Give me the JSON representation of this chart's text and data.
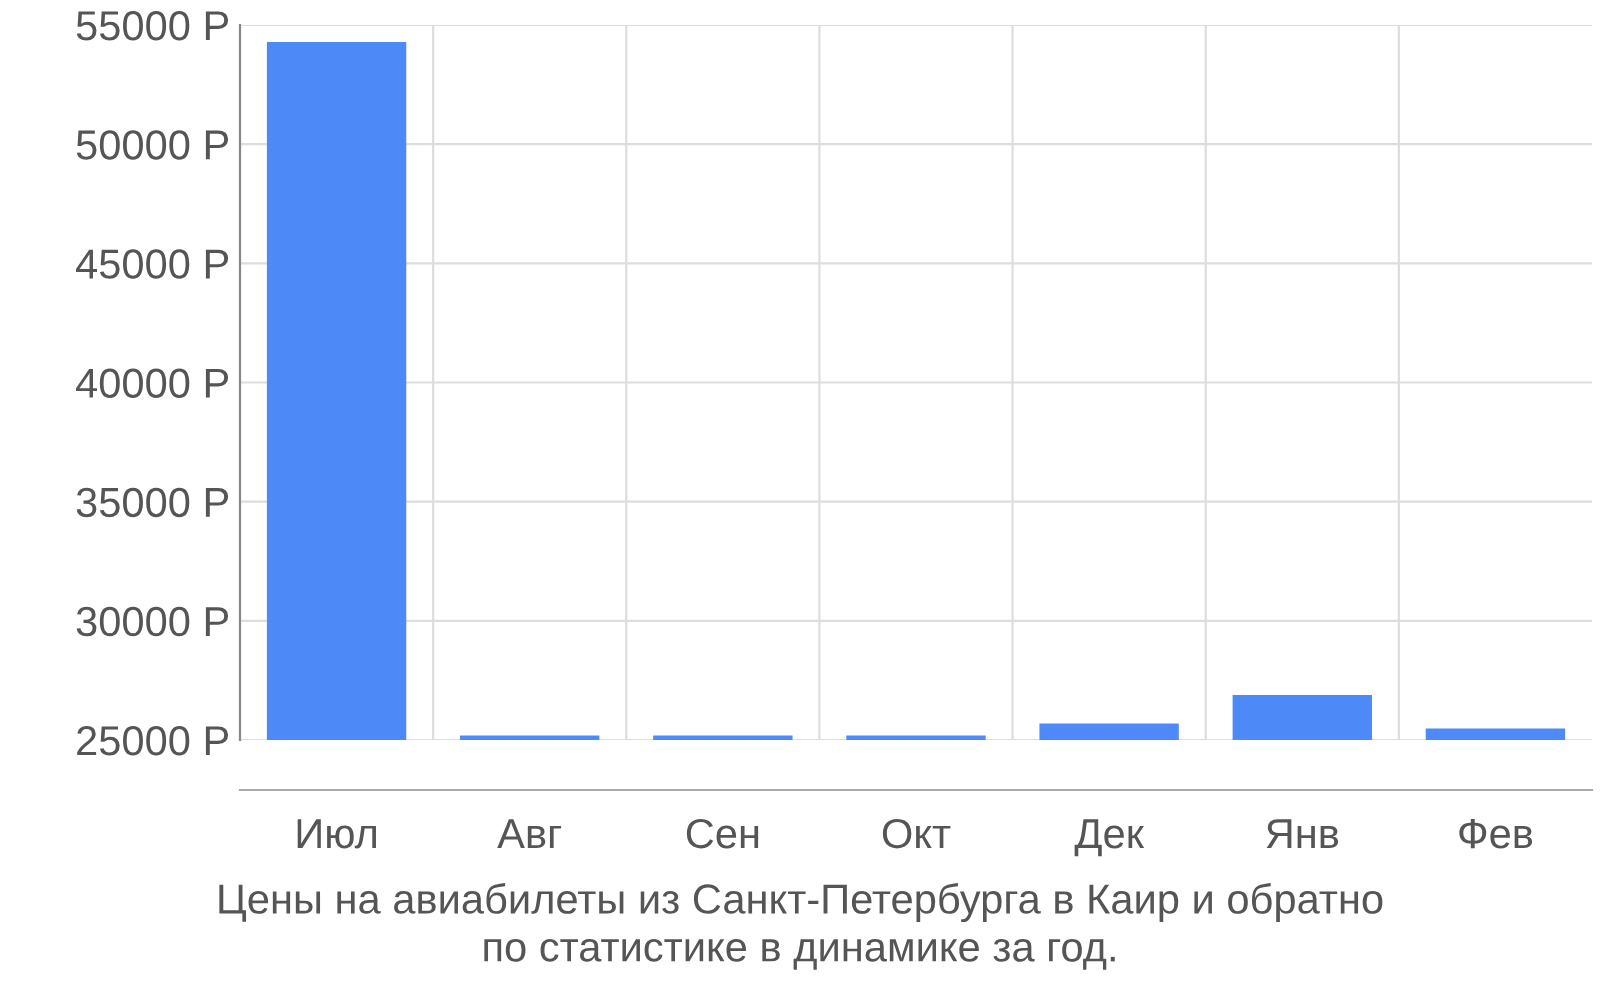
{
  "chart_data": {
    "type": "bar",
    "categories": [
      "Июл",
      "Авг",
      "Сен",
      "Окт",
      "Дек",
      "Янв",
      "Фев"
    ],
    "values": [
      54200,
      25100,
      25100,
      25100,
      25600,
      26800,
      25400
    ],
    "color": "#4d8af8",
    "ylim": [
      25000,
      55000
    ],
    "yticks": [
      {
        "value": 25000,
        "label": "25000 Р"
      },
      {
        "value": 30000,
        "label": "30000 Р"
      },
      {
        "value": 35000,
        "label": "35000 Р"
      },
      {
        "value": 40000,
        "label": "40000 Р"
      },
      {
        "value": 45000,
        "label": "45000 Р"
      },
      {
        "value": 50000,
        "label": "50000 Р"
      },
      {
        "value": 55000,
        "label": "55000 Р"
      }
    ],
    "grid": true,
    "annotations": [
      "Цены на авиабилеты из Санкт-Петербурга в Каир и обратно\nпо статистике в динамике за год."
    ]
  }
}
